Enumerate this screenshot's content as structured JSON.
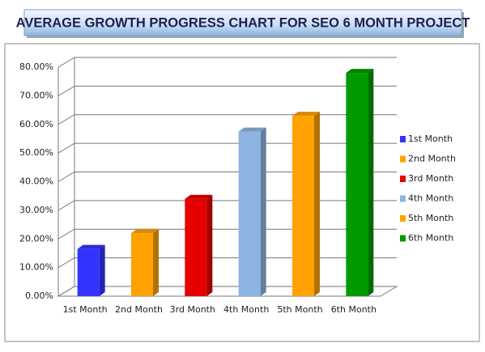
{
  "chart_data": {
    "type": "bar3d",
    "title": "AVERAGE GROWTH PROGRESS CHART FOR SEO 6 MONTH PROJECT",
    "categories": [
      "1st Month",
      "2nd Month",
      "3rd Month",
      "4th Month",
      "5th Month",
      "6th Month"
    ],
    "values": [
      16.5,
      22,
      34,
      57.5,
      63,
      78
    ],
    "colors": [
      "#3333ff",
      "#ffa200",
      "#e60000",
      "#8db4e2",
      "#ffa200",
      "#009a00"
    ],
    "ylim": [
      0,
      80
    ],
    "yticks": [
      {
        "value": 0,
        "label": "0.00%"
      },
      {
        "value": 10,
        "label": "10.00%"
      },
      {
        "value": 20,
        "label": "20.00%"
      },
      {
        "value": 30,
        "label": "30.00%"
      },
      {
        "value": 40,
        "label": "40.00%"
      },
      {
        "value": 50,
        "label": "50.00%"
      },
      {
        "value": 60,
        "label": "60.00%"
      },
      {
        "value": 70,
        "label": "70.00%"
      },
      {
        "value": 80,
        "label": "80.00%"
      }
    ],
    "grid": true,
    "legend": "right"
  }
}
